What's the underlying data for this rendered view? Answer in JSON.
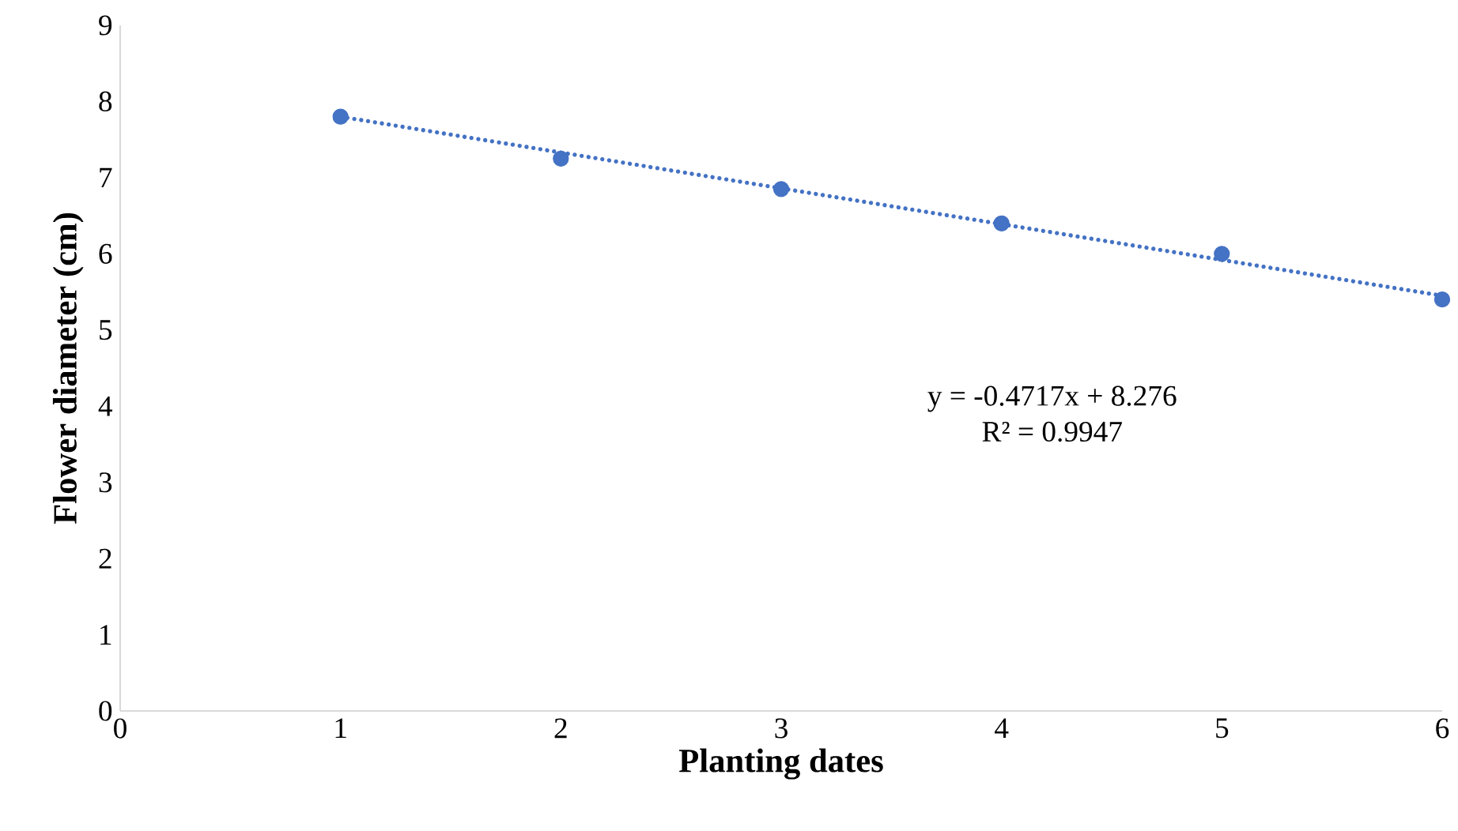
{
  "chart_data": {
    "type": "scatter",
    "xlabel": "Planting dates",
    "ylabel": "Flower diameter (cm)",
    "xlim": [
      0,
      6
    ],
    "xticks": [
      0,
      1,
      2,
      3,
      4,
      5,
      6
    ],
    "ylim": [
      0,
      9
    ],
    "yticks": [
      0,
      1,
      2,
      3,
      4,
      5,
      6,
      7,
      8,
      9
    ],
    "grid": false,
    "series": [
      {
        "marker": "circle",
        "color": "#4472c4",
        "x": [
          1,
          2,
          3,
          4,
          5,
          6
        ],
        "values": [
          7.8,
          7.25,
          6.85,
          6.4,
          6.0,
          5.4
        ]
      },
      {
        "type": "line",
        "marker": "none",
        "color": "#4472c4",
        "line_style": "dotted",
        "x": [
          1,
          6
        ],
        "values": [
          7.8,
          5.45
        ]
      }
    ],
    "annotations": [
      "y = -0.4717x + 8.276",
      "R² = 0.9947"
    ]
  }
}
